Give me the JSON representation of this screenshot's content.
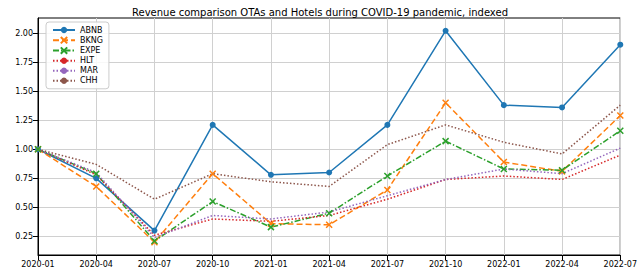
{
  "chart_data": {
    "type": "line",
    "title": "Revenue comparison OTAs and Hotels during COVID-19 pandemic, indexed",
    "categories": [
      "2020-01",
      "2020-04",
      "2020-07",
      "2020-10",
      "2021-01",
      "2021-04",
      "2021-07",
      "2021-10",
      "2022-01",
      "2022-04",
      "2022-07"
    ],
    "series": [
      {
        "name": "ABNB",
        "color": "#1f77b4",
        "marker": "circle",
        "line_style": "solid",
        "values": [
          1.0,
          0.75,
          0.3,
          1.21,
          0.78,
          0.8,
          1.21,
          2.02,
          1.38,
          1.36,
          1.9
        ]
      },
      {
        "name": "BKNG",
        "color": "#ff7f0e",
        "marker": "x",
        "line_style": "dashed",
        "values": [
          1.0,
          0.68,
          0.2,
          0.79,
          0.36,
          0.35,
          0.65,
          1.4,
          0.89,
          0.81,
          1.29
        ]
      },
      {
        "name": "EXPE",
        "color": "#2ca02c",
        "marker": "x",
        "line_style": "dashdot",
        "values": [
          1.0,
          0.79,
          0.21,
          0.55,
          0.33,
          0.45,
          0.77,
          1.07,
          0.83,
          0.82,
          1.16
        ]
      },
      {
        "name": "HLT",
        "color": "#d62728",
        "line_style": "dotted",
        "values": [
          1.0,
          0.78,
          0.26,
          0.4,
          0.38,
          0.43,
          0.57,
          0.74,
          0.77,
          0.74,
          0.95
        ]
      },
      {
        "name": "MAR",
        "color": "#9467bd",
        "line_style": "dotted",
        "values": [
          1.0,
          0.8,
          0.24,
          0.43,
          0.4,
          0.46,
          0.6,
          0.74,
          0.83,
          0.79,
          1.01
        ]
      },
      {
        "name": "CHH",
        "color": "#8c564b",
        "line_style": "dotted",
        "values": [
          1.0,
          0.87,
          0.57,
          0.79,
          0.72,
          0.68,
          1.04,
          1.21,
          1.06,
          0.96,
          1.38
        ]
      }
    ],
    "ylim": [
      0.09,
      2.13
    ],
    "yticks": [
      {
        "value": 0.25,
        "label": "0.25"
      },
      {
        "value": 0.5,
        "label": "0.50"
      },
      {
        "value": 0.75,
        "label": "0.75"
      },
      {
        "value": 1.0,
        "label": "1.00"
      },
      {
        "value": 1.25,
        "label": "1.25"
      },
      {
        "value": 1.5,
        "label": "1.50"
      },
      {
        "value": 1.75,
        "label": "1.75"
      },
      {
        "value": 2.0,
        "label": "2.00"
      }
    ],
    "grid": true,
    "legend": "upper left"
  }
}
